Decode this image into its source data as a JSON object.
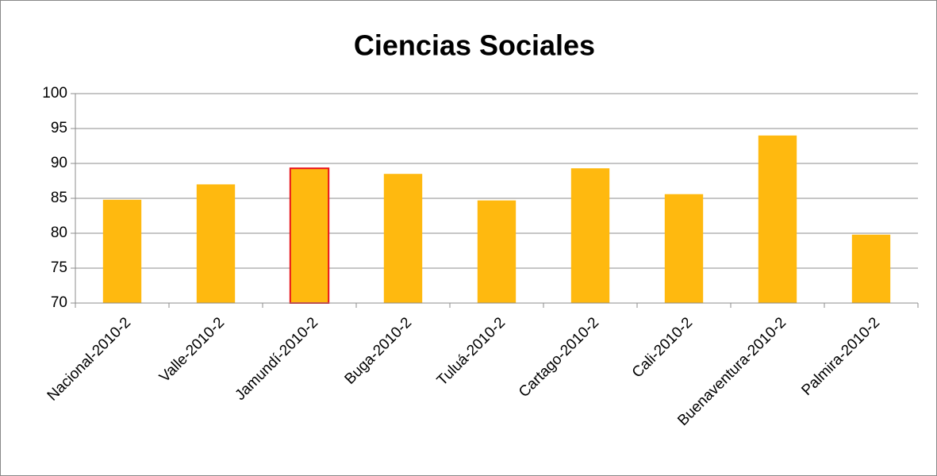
{
  "chart_data": {
    "type": "bar",
    "title": "Ciencias Sociales",
    "categories": [
      "Nacional-2010-2",
      "Valle-2010-2",
      "Jamundí-2010-2",
      "Buga-2010-2",
      "Tuluá-2010-2",
      "Cartago-2010-2",
      "Cali-2010-2",
      "Buenaventura-2010-2",
      "Palmira-2010-2"
    ],
    "values": [
      84.8,
      87.0,
      89.3,
      88.5,
      84.7,
      89.3,
      85.6,
      94.0,
      79.8
    ],
    "color": "#ffb90f",
    "edgecolors": [
      null,
      null,
      "#e8141c",
      null,
      null,
      null,
      null,
      null,
      null
    ],
    "ylim": [
      70,
      100
    ],
    "yticks": [
      70,
      75,
      80,
      85,
      90,
      95,
      100
    ],
    "grid": true
  }
}
